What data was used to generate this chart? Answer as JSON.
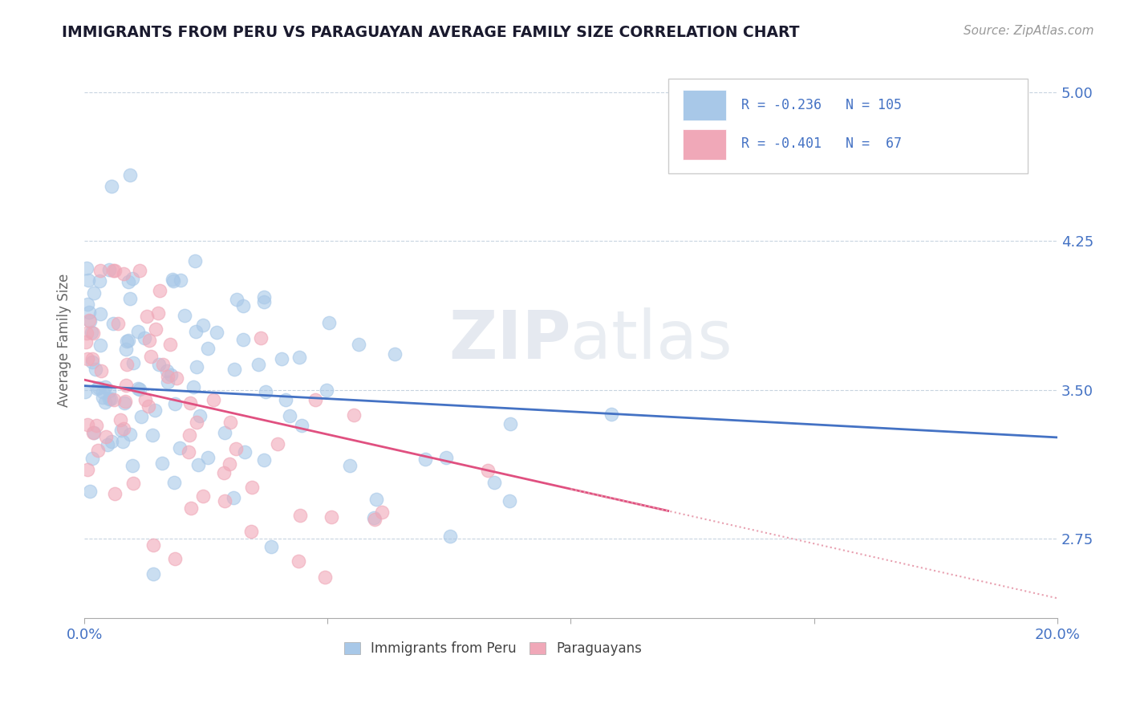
{
  "title": "IMMIGRANTS FROM PERU VS PARAGUAYAN AVERAGE FAMILY SIZE CORRELATION CHART",
  "source_text": "Source: ZipAtlas.com",
  "xlabel": "",
  "ylabel": "Average Family Size",
  "xlim": [
    0.0,
    0.2
  ],
  "ylim": [
    2.35,
    5.15
  ],
  "yticks": [
    2.75,
    3.5,
    4.25,
    5.0
  ],
  "xticks": [
    0.0,
    0.05,
    0.1,
    0.15,
    0.2
  ],
  "xticklabels": [
    "0.0%",
    "",
    "",
    "",
    "20.0%"
  ],
  "yticklabels_right": [
    "2.75",
    "3.50",
    "4.25",
    "5.00"
  ],
  "legend_r1": "R = -0.236",
  "legend_n1": "N = 105",
  "legend_r2": "R = -0.401",
  "legend_n2": "N =  67",
  "legend_label1": "Immigrants from Peru",
  "legend_label2": "Paraguayans",
  "color_blue": "#a8c8e8",
  "color_pink": "#f0a8b8",
  "line_color_blue": "#4472c4",
  "line_color_pink": "#e05080",
  "line_color_dashed": "#e8a0b0",
  "watermark_zip": "ZIP",
  "watermark_atlas": "atlas",
  "title_color": "#1a1a2e",
  "axis_color": "#4472c4",
  "seed": 42,
  "n_blue": 105,
  "n_pink": 67,
  "R_blue": -0.236,
  "R_pink": -0.401,
  "background_color": "#ffffff",
  "blue_intercept": 3.52,
  "blue_slope": -1.5,
  "pink_intercept": 3.55,
  "pink_slope": -5.5
}
